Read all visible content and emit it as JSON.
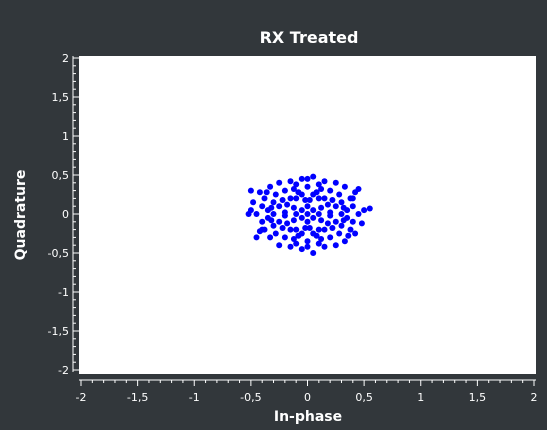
{
  "chart_data": {
    "type": "scatter",
    "title": "RX Treated",
    "xlabel": "In-phase",
    "ylabel": "Quadrature",
    "xlim": [
      -2,
      2
    ],
    "ylim": [
      -2,
      2
    ],
    "xticks": [
      -2,
      -1.5,
      -1,
      -0.5,
      0,
      0.5,
      1,
      1.5,
      2
    ],
    "yticks": [
      -2,
      -1.5,
      -1,
      -0.5,
      0,
      0.5,
      1,
      1.5,
      2
    ],
    "xtick_labels": [
      "-2",
      "-1,5",
      "-1",
      "-0,5",
      "0",
      "0,5",
      "1",
      "1,5",
      "2"
    ],
    "ytick_labels": [
      "-2",
      "-1,5",
      "-1",
      "-0,5",
      "0",
      "0,5",
      "1",
      "1,5",
      "2"
    ],
    "grid": false,
    "series": [
      {
        "color": "#0000ff",
        "points": [
          [
            0.0,
            0.0
          ],
          [
            0.05,
            0.05
          ],
          [
            -0.05,
            0.05
          ],
          [
            0.05,
            -0.05
          ],
          [
            -0.05,
            -0.05
          ],
          [
            0.1,
            0.0
          ],
          [
            -0.1,
            0.0
          ],
          [
            0.0,
            0.1
          ],
          [
            0.0,
            -0.1
          ],
          [
            0.12,
            0.08
          ],
          [
            -0.12,
            0.08
          ],
          [
            0.12,
            -0.08
          ],
          [
            -0.12,
            -0.08
          ],
          [
            0.2,
            0.02
          ],
          [
            -0.2,
            0.02
          ],
          [
            0.2,
            -0.02
          ],
          [
            -0.2,
            -0.02
          ],
          [
            0.02,
            0.18
          ],
          [
            -0.02,
            0.18
          ],
          [
            0.02,
            -0.18
          ],
          [
            -0.02,
            -0.18
          ],
          [
            0.25,
            0.1
          ],
          [
            -0.25,
            0.1
          ],
          [
            0.25,
            -0.1
          ],
          [
            -0.25,
            -0.1
          ],
          [
            0.15,
            0.2
          ],
          [
            -0.15,
            0.2
          ],
          [
            0.15,
            -0.2
          ],
          [
            -0.15,
            -0.2
          ],
          [
            0.3,
            0.0
          ],
          [
            -0.3,
            0.0
          ],
          [
            0.3,
            0.15
          ],
          [
            -0.3,
            0.15
          ],
          [
            0.3,
            -0.15
          ],
          [
            -0.3,
            -0.15
          ],
          [
            0.08,
            0.28
          ],
          [
            -0.08,
            0.28
          ],
          [
            0.08,
            -0.28
          ],
          [
            -0.08,
            -0.28
          ],
          [
            0.35,
            0.05
          ],
          [
            -0.35,
            0.05
          ],
          [
            0.35,
            -0.05
          ],
          [
            -0.35,
            -0.05
          ],
          [
            0.2,
            0.3
          ],
          [
            -0.2,
            0.3
          ],
          [
            0.2,
            -0.3
          ],
          [
            -0.2,
            -0.3
          ],
          [
            0.4,
            0.1
          ],
          [
            -0.4,
            0.1
          ],
          [
            0.4,
            -0.1
          ],
          [
            -0.4,
            -0.1
          ],
          [
            0.0,
            0.35
          ],
          [
            0.0,
            -0.35
          ],
          [
            0.1,
            0.38
          ],
          [
            -0.1,
            0.38
          ],
          [
            0.1,
            -0.38
          ],
          [
            -0.1,
            -0.38
          ],
          [
            0.45,
            0.0
          ],
          [
            -0.45,
            0.0
          ],
          [
            0.28,
            0.25
          ],
          [
            -0.28,
            0.25
          ],
          [
            0.28,
            -0.25
          ],
          [
            -0.28,
            -0.25
          ],
          [
            0.38,
            0.2
          ],
          [
            -0.38,
            0.2
          ],
          [
            0.38,
            -0.2
          ],
          [
            -0.38,
            -0.2
          ],
          [
            0.5,
            0.05
          ],
          [
            -0.5,
            0.05
          ],
          [
            0.55,
            0.07
          ],
          [
            -0.52,
            0.0
          ],
          [
            0.33,
            0.35
          ],
          [
            -0.33,
            0.35
          ],
          [
            0.33,
            -0.35
          ],
          [
            -0.33,
            -0.3
          ],
          [
            0.0,
            0.45
          ],
          [
            0.05,
            0.48
          ],
          [
            -0.05,
            0.45
          ],
          [
            0.0,
            -0.42
          ],
          [
            0.05,
            -0.5
          ],
          [
            -0.05,
            -0.45
          ],
          [
            0.15,
            0.42
          ],
          [
            -0.15,
            0.42
          ],
          [
            0.15,
            -0.42
          ],
          [
            -0.15,
            -0.42
          ],
          [
            0.42,
            0.28
          ],
          [
            -0.42,
            0.28
          ],
          [
            0.42,
            -0.25
          ],
          [
            -0.42,
            -0.22
          ],
          [
            -0.48,
            0.15
          ],
          [
            0.48,
            -0.12
          ],
          [
            -0.5,
            0.3
          ],
          [
            0.45,
            0.32
          ],
          [
            -0.45,
            -0.3
          ],
          [
            0.25,
            0.4
          ],
          [
            -0.25,
            0.4
          ],
          [
            0.25,
            -0.4
          ],
          [
            -0.25,
            -0.4
          ],
          [
            0.1,
            0.2
          ],
          [
            -0.1,
            0.2
          ],
          [
            0.1,
            -0.2
          ],
          [
            -0.1,
            -0.2
          ],
          [
            0.18,
            0.12
          ],
          [
            -0.18,
            0.12
          ],
          [
            0.18,
            -0.12
          ],
          [
            -0.18,
            -0.12
          ],
          [
            0.05,
            0.25
          ],
          [
            -0.05,
            0.25
          ],
          [
            0.05,
            -0.25
          ],
          [
            -0.05,
            -0.25
          ],
          [
            0.22,
            0.18
          ],
          [
            -0.22,
            0.18
          ],
          [
            0.22,
            -0.18
          ],
          [
            -0.22,
            -0.18
          ],
          [
            0.32,
            0.08
          ],
          [
            -0.32,
            0.08
          ],
          [
            0.32,
            -0.08
          ],
          [
            -0.32,
            -0.08
          ],
          [
            0.12,
            0.32
          ],
          [
            -0.12,
            0.32
          ],
          [
            0.12,
            -0.32
          ],
          [
            -0.12,
            -0.32
          ],
          [
            0.4,
            0.2
          ],
          [
            -0.4,
            -0.2
          ],
          [
            0.36,
            -0.28
          ],
          [
            -0.36,
            0.28
          ]
        ]
      }
    ]
  }
}
